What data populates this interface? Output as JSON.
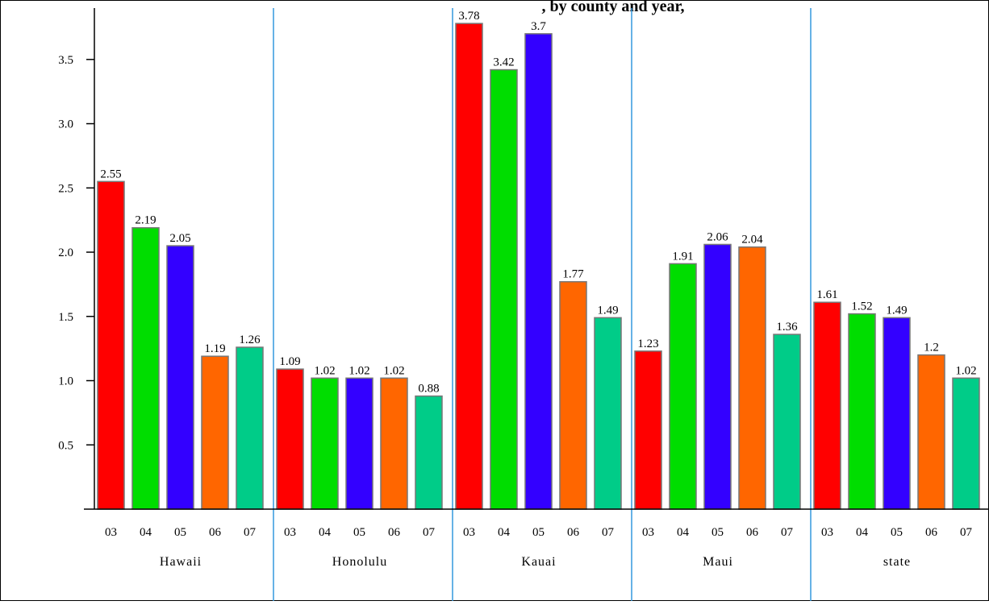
{
  "chart_data": {
    "type": "bar",
    "title": ", by county and year,",
    "groups": [
      "Hawaii",
      "Honolulu",
      "Kauai",
      "Maui",
      "state"
    ],
    "categories": [
      "03",
      "04",
      "05",
      "06",
      "07"
    ],
    "series_colors": [
      "#ff0000",
      "#00dd00",
      "#3300ff",
      "#ff6600",
      "#00cc88"
    ],
    "values": [
      [
        2.55,
        2.19,
        2.05,
        1.19,
        1.26
      ],
      [
        1.09,
        1.02,
        1.02,
        1.02,
        0.88
      ],
      [
        3.78,
        3.42,
        3.7,
        1.77,
        1.49
      ],
      [
        1.23,
        1.91,
        2.06,
        2.04,
        1.36
      ],
      [
        1.61,
        1.52,
        1.49,
        1.2,
        1.02
      ]
    ],
    "data_labels": [
      [
        "2.55",
        "2.19",
        "2.05",
        "1.19",
        "1.26"
      ],
      [
        "1.09",
        "1.02",
        "1.02",
        "1.02",
        "0.88"
      ],
      [
        "3.78",
        "3.42",
        "3.7",
        "1.77",
        "1.49"
      ],
      [
        "1.23",
        "1.91",
        "2.06",
        "2.04",
        "1.36"
      ],
      [
        "1.61",
        "1.52",
        "1.49",
        "1.2",
        "1.02"
      ]
    ],
    "y_ticks": [
      0.5,
      1.0,
      1.5,
      2.0,
      2.5,
      3.0,
      3.5
    ],
    "y_tick_labels": [
      "0.5",
      "1.0",
      "1.5",
      "2.0",
      "2.5",
      "3.0",
      "3.5"
    ],
    "ylim": [
      0,
      3.9
    ],
    "xlabel": "",
    "ylabel": "",
    "grid": false,
    "group_separators": true,
    "separator_color": "#3399dd",
    "bar_outline_color": "#777777"
  }
}
